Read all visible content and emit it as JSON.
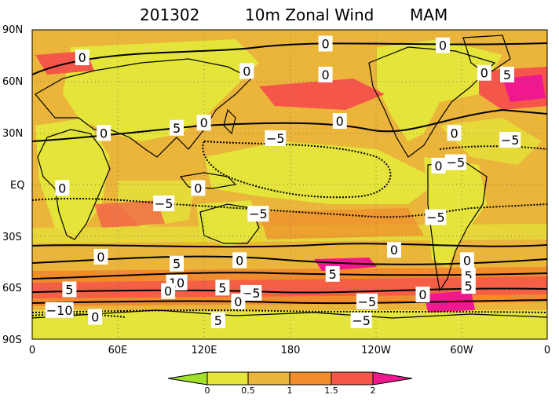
{
  "header": {
    "date": "201302",
    "variable": "10m Zonal Wind",
    "season": "MAM"
  },
  "axes": {
    "y_ticks": [
      "90N",
      "60N",
      "30N",
      "EQ",
      "30S",
      "60S",
      "90S"
    ],
    "x_ticks": [
      "0",
      "60E",
      "120E",
      "180",
      "120W",
      "60W",
      "0"
    ]
  },
  "contour_labels": [
    {
      "text": "0",
      "lon": 205,
      "lat": 82
    },
    {
      "text": "0",
      "lon": 287,
      "lat": 81
    },
    {
      "text": "0",
      "lon": 35,
      "lat": 74
    },
    {
      "text": "0",
      "lon": 150,
      "lat": 66
    },
    {
      "text": "0",
      "lon": 205,
      "lat": 64
    },
    {
      "text": "0",
      "lon": 316,
      "lat": 65
    },
    {
      "text": "5",
      "lon": 332,
      "lat": 64
    },
    {
      "text": "0",
      "lon": 120,
      "lat": 36
    },
    {
      "text": "5",
      "lon": 101,
      "lat": 33
    },
    {
      "text": "0",
      "lon": 50,
      "lat": 30
    },
    {
      "text": "0",
      "lon": 215,
      "lat": 37
    },
    {
      "text": "-5",
      "lon": 170,
      "lat": 27
    },
    {
      "text": "0",
      "lon": 295,
      "lat": 30
    },
    {
      "text": "-5",
      "lon": 334,
      "lat": 26
    },
    {
      "text": "0",
      "lon": 284,
      "lat": 11
    },
    {
      "text": "-5",
      "lon": 296,
      "lat": 13
    },
    {
      "text": "0",
      "lon": 116,
      "lat": -2
    },
    {
      "text": "0",
      "lon": 21,
      "lat": -2
    },
    {
      "text": "-5",
      "lon": 92,
      "lat": -11
    },
    {
      "text": "-5",
      "lon": 158,
      "lat": -17
    },
    {
      "text": "-5",
      "lon": 282,
      "lat": -19
    },
    {
      "text": "0",
      "lon": 48,
      "lat": -42
    },
    {
      "text": "0",
      "lon": 253,
      "lat": -38
    },
    {
      "text": "0",
      "lon": 145,
      "lat": -44
    },
    {
      "text": "5",
      "lon": 101,
      "lat": -46
    },
    {
      "text": "0",
      "lon": 304,
      "lat": -44
    },
    {
      "text": "5",
      "lon": 305,
      "lat": -53
    },
    {
      "text": "5",
      "lon": 210,
      "lat": -52
    },
    {
      "text": "10",
      "lon": 101,
      "lat": -57
    },
    {
      "text": "5",
      "lon": 26,
      "lat": -61
    },
    {
      "text": "0",
      "lon": 95,
      "lat": -62
    },
    {
      "text": "5",
      "lon": 133,
      "lat": -60
    },
    {
      "text": "-5",
      "lon": 153,
      "lat": -63
    },
    {
      "text": "5",
      "lon": 305,
      "lat": -59
    },
    {
      "text": "0",
      "lon": 273,
      "lat": -64
    },
    {
      "text": "-10",
      "lon": 19,
      "lat": -73
    },
    {
      "text": "0",
      "lon": 44,
      "lat": -77
    },
    {
      "text": "0",
      "lon": 144,
      "lat": -68
    },
    {
      "text": "-5",
      "lon": 234,
      "lat": -68
    },
    {
      "text": "-5",
      "lon": 230,
      "lat": -79
    },
    {
      "text": "5",
      "lon": 130,
      "lat": -79
    }
  ],
  "colorbar": {
    "levels": [
      "0",
      "0.5",
      "1",
      "1.5",
      "2"
    ],
    "colors": [
      "#9fe02b",
      "#e4e43a",
      "#eab53a",
      "#f08c2c",
      "#f4574a",
      "#f0188f"
    ]
  },
  "fill_colors": {
    "land_yellow": "#e4e43a",
    "ocean_orange": "#eab53a",
    "deep_orange": "#f08c2c",
    "red": "#f4574a",
    "magenta": "#f0188f",
    "light": "#f0d060"
  }
}
